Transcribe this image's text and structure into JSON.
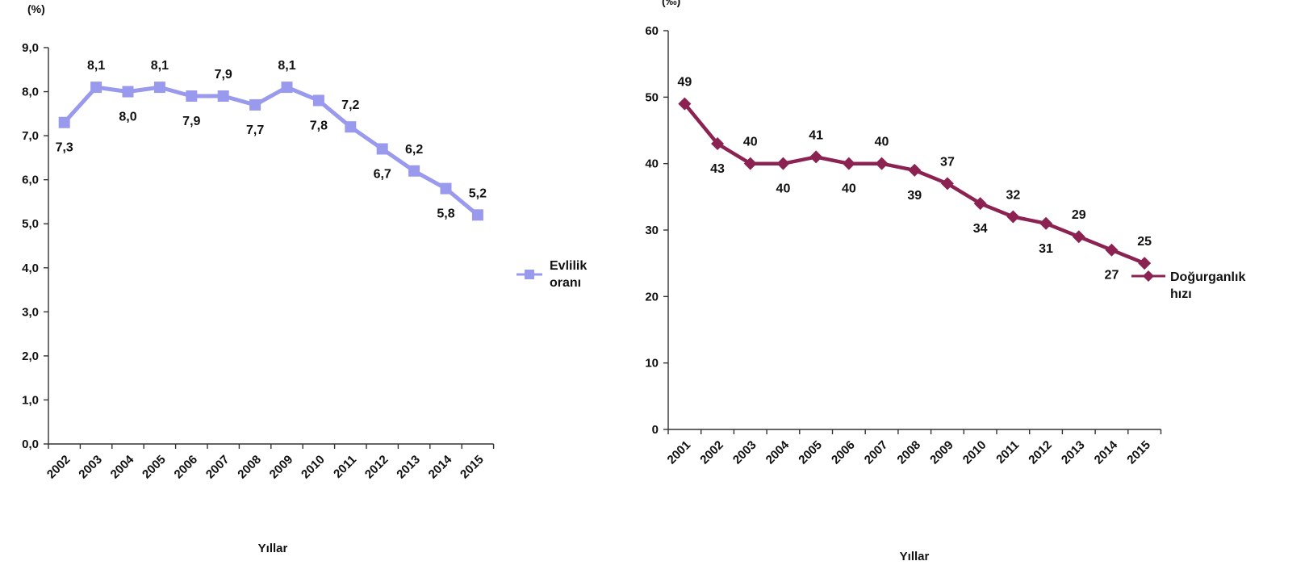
{
  "chart_data": [
    {
      "type": "line",
      "title": "",
      "unit_label": "(%)",
      "xlabel": "Yıllar",
      "ylabel": "",
      "ylim": [
        0,
        9
      ],
      "yticks": [
        "0,0",
        "1,0",
        "2,0",
        "3,0",
        "4,0",
        "5,0",
        "6,0",
        "7,0",
        "8,0",
        "9,0"
      ],
      "categories": [
        "2002",
        "2003",
        "2004",
        "2005",
        "2006",
        "2007",
        "2008",
        "2009",
        "2010",
        "2011",
        "2012",
        "2013",
        "2014",
        "2015"
      ],
      "series": [
        {
          "name": "Evlilik oranı",
          "legend_lines": [
            "Evlilik",
            "oranı"
          ],
          "values": [
            7.3,
            8.1,
            8.0,
            8.1,
            7.9,
            7.9,
            7.7,
            8.1,
            7.8,
            7.2,
            6.7,
            6.2,
            5.8,
            5.2
          ],
          "labels": [
            "7,3",
            "8,1",
            "8,0",
            "8,1",
            "7,9",
            "7,9",
            "7,7",
            "8,1",
            "7,8",
            "7,2",
            "6,7",
            "6,2",
            "5,8",
            "5,2"
          ],
          "color": "#9999ee",
          "marker": "square"
        }
      ],
      "grid": false,
      "legend_position": "right"
    },
    {
      "type": "line",
      "title": "",
      "unit_label": "(‰)",
      "xlabel": "Yıllar",
      "ylabel": "",
      "ylim": [
        0,
        60
      ],
      "yticks": [
        "0",
        "10",
        "20",
        "30",
        "40",
        "50",
        "60"
      ],
      "categories": [
        "2001",
        "2002",
        "2003",
        "2004",
        "2005",
        "2006",
        "2007",
        "2008",
        "2009",
        "2010",
        "2011",
        "2012",
        "2013",
        "2014",
        "2015"
      ],
      "series": [
        {
          "name": "Doğurganlık hızı",
          "legend_lines": [
            "Doğurganlık",
            "hızı"
          ],
          "values": [
            49,
            43,
            40,
            40,
            41,
            40,
            40,
            39,
            37,
            34,
            32,
            31,
            29,
            27,
            25
          ],
          "labels": [
            "49",
            "43",
            "40",
            "40",
            "41",
            "40",
            "40",
            "39",
            "37",
            "34",
            "32",
            "31",
            "29",
            "27",
            "25"
          ],
          "color": "#8b2252",
          "marker": "diamond"
        }
      ],
      "grid": false,
      "legend_position": "right"
    }
  ]
}
